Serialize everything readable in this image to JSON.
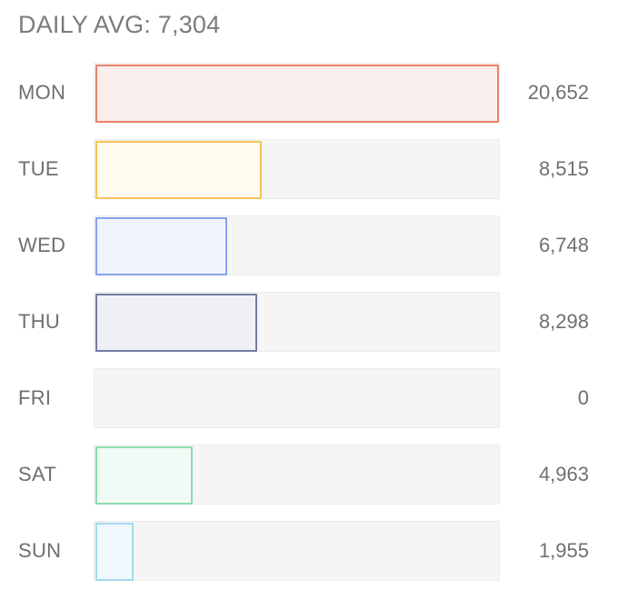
{
  "header": {
    "label": "DAILY AVG: 7,304"
  },
  "chart_data": {
    "type": "bar",
    "orientation": "horizontal",
    "categories": [
      "MON",
      "TUE",
      "WED",
      "THU",
      "FRI",
      "SAT",
      "SUN"
    ],
    "values": [
      20652,
      8515,
      6748,
      8298,
      0,
      4963,
      1955
    ],
    "value_labels": [
      "20,652",
      "8,515",
      "6,748",
      "8,298",
      "0",
      "4,963",
      "1,955"
    ],
    "xlim": [
      0,
      20652
    ],
    "colors": [
      {
        "border": "#e8826c",
        "fill": "#faefed"
      },
      {
        "border": "#f5c35a",
        "fill": "#fffbee"
      },
      {
        "border": "#8aa1ec",
        "fill": "#f0f4ff"
      },
      {
        "border": "#747ca3",
        "fill": "#eff0f5"
      },
      {
        "border": "#cccccc",
        "fill": "#f5f5f5"
      },
      {
        "border": "#8edbb0",
        "fill": "#f1fbf5"
      },
      {
        "border": "#a6d8ef",
        "fill": "#f1f8fd"
      }
    ],
    "track_color": "#f5f5f5",
    "grid": false
  }
}
